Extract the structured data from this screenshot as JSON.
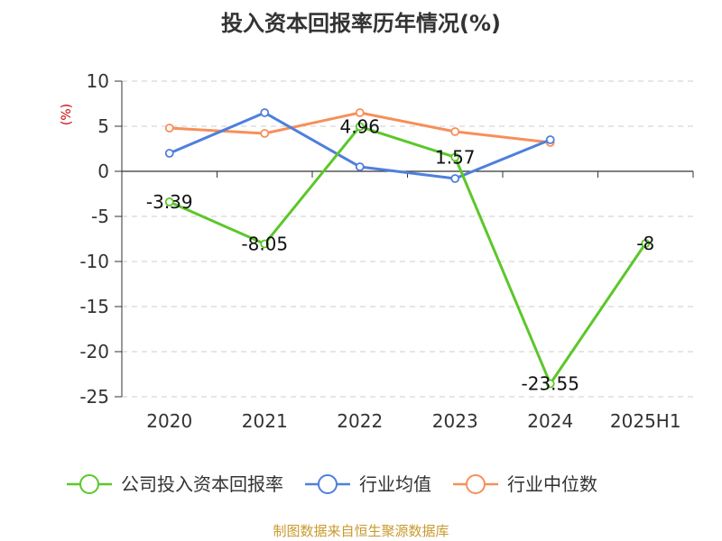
{
  "chart_data": {
    "type": "line",
    "title": "投入资本回报率历年情况(%)",
    "ylabel": "(%)",
    "categories": [
      "2020",
      "2021",
      "2022",
      "2023",
      "2024",
      "2025H1"
    ],
    "ylim": [
      -25,
      10
    ],
    "yticks": [
      10,
      5,
      0,
      -5,
      -10,
      -15,
      -20,
      -25
    ],
    "grid": true,
    "legend_position": "bottom",
    "series": [
      {
        "name": "公司投入资本回报率",
        "color": "#5cc72a",
        "values": [
          -3.39,
          -8.05,
          4.96,
          1.57,
          -23.55,
          -8
        ],
        "labels": [
          "-3.39",
          "-8.05",
          "4.96",
          "1.57",
          "-23.55",
          "-8"
        ]
      },
      {
        "name": "行业均值",
        "color": "#4f7fdc",
        "values": [
          2.0,
          6.5,
          0.5,
          -0.8,
          3.5,
          null
        ]
      },
      {
        "name": "行业中位数",
        "color": "#f78f5a",
        "values": [
          4.8,
          4.2,
          6.5,
          4.4,
          3.2,
          null
        ]
      }
    ],
    "source": "制图数据来自恒生聚源数据库",
    "source_color": "#c79a2e",
    "ylabel_color": "#cc0000"
  }
}
